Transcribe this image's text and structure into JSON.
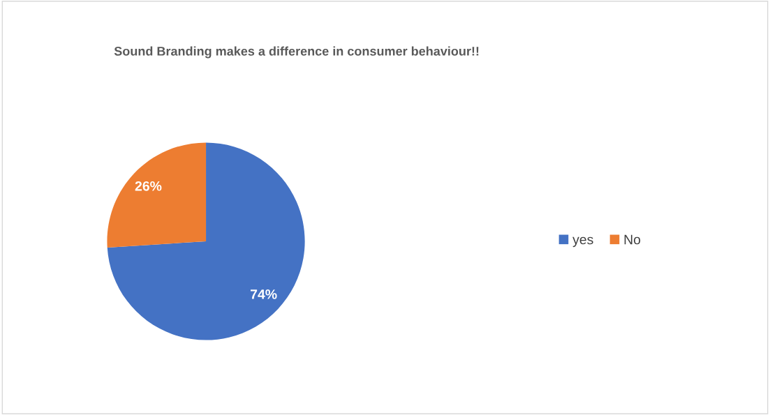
{
  "chart_data": {
    "type": "pie",
    "title": "Sound Branding makes a difference in consumer behaviour!!",
    "categories": [
      "yes",
      "No"
    ],
    "values": [
      74,
      26
    ],
    "colors": [
      "#4472c4",
      "#ed7d31"
    ],
    "value_labels": [
      "74%",
      "26%"
    ],
    "legend": "right"
  }
}
